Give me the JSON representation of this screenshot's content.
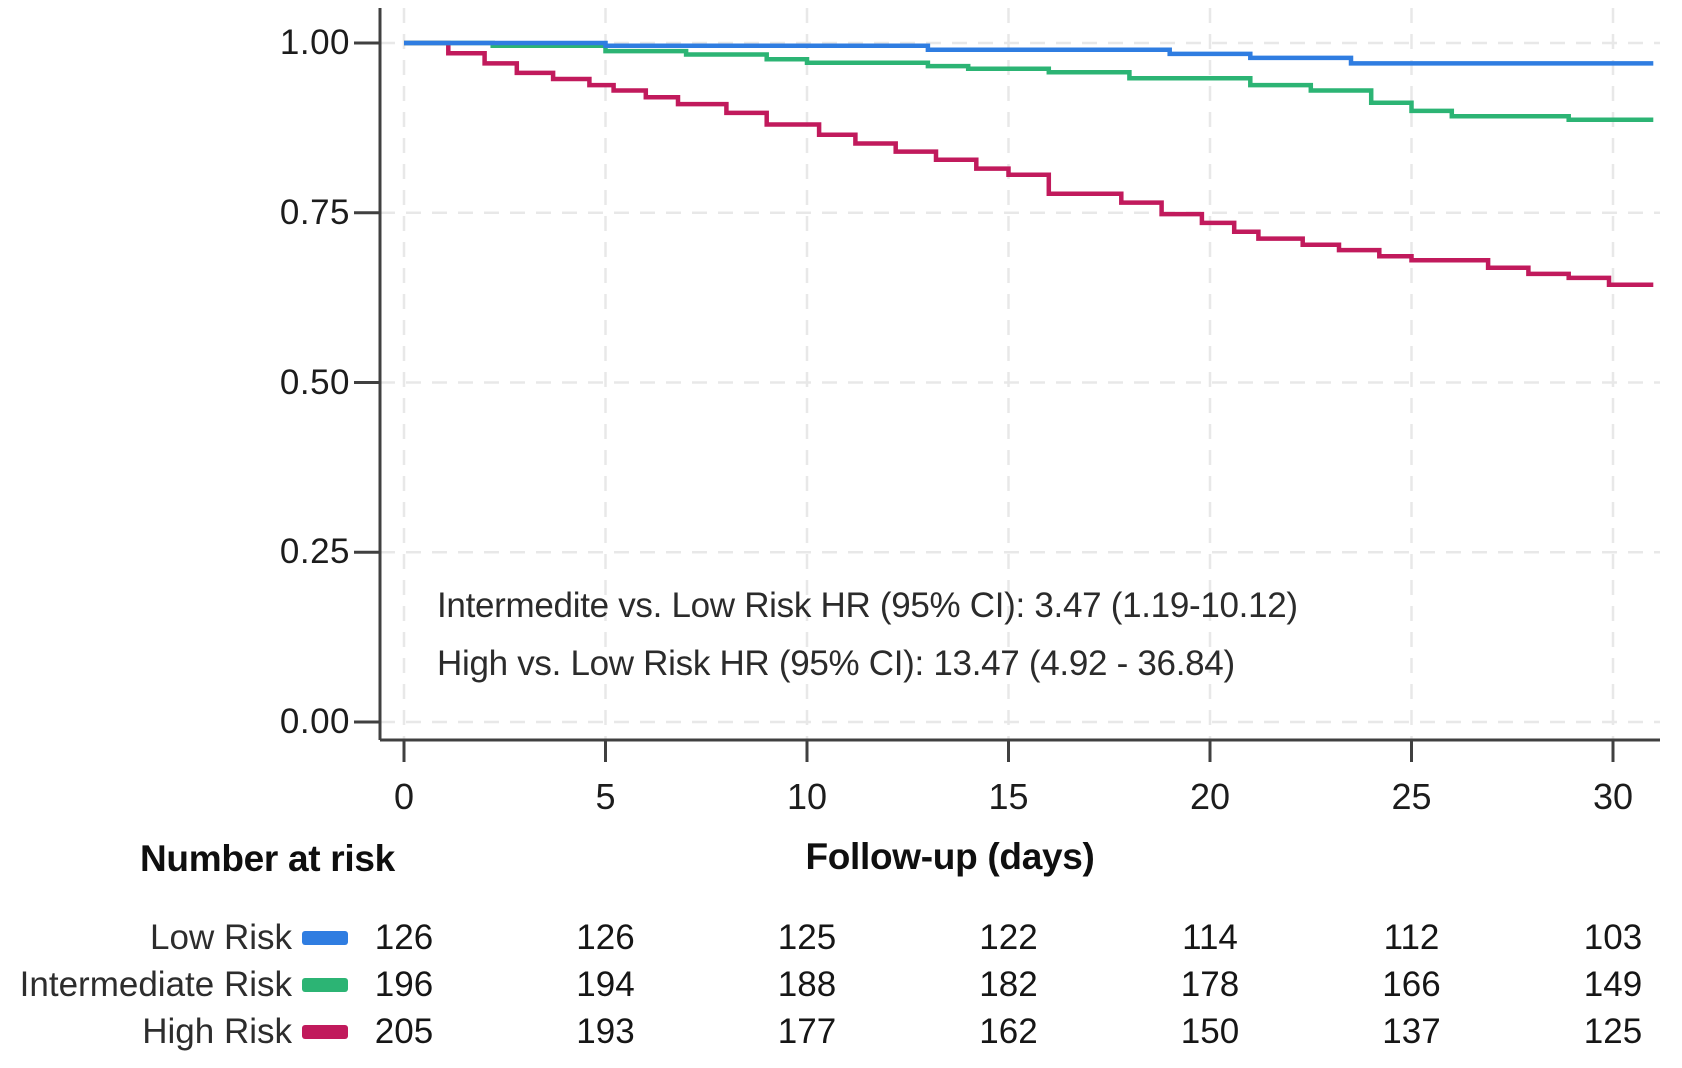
{
  "colors": {
    "low_risk": "#2f7de1",
    "intermediate_risk": "#2cb474",
    "high_risk": "#c11a5c",
    "grid": "#e8e8e8",
    "axis": "#404040",
    "tick_text": "#1c1c1c",
    "annotation_text": "#2b2b2b"
  },
  "chart_data": {
    "type": "line",
    "subtype": "kaplan-meier-step-survival",
    "title": "",
    "xlabel": "Follow-up (days)",
    "ylabel": "",
    "xlim": [
      0,
      31
    ],
    "ylim": [
      0.0,
      1.0
    ],
    "x_ticks": [
      0,
      5,
      10,
      15,
      20,
      25,
      30
    ],
    "x_tick_labels": [
      "0",
      "5",
      "10",
      "15",
      "20",
      "25",
      "30"
    ],
    "y_ticks": [
      1.0,
      0.75,
      0.5,
      0.25,
      0.0
    ],
    "y_tick_labels": [
      "1.00",
      "0.75",
      "0.50",
      "0.25",
      "0.00"
    ],
    "grid": true,
    "legend_position": "risk-table-left",
    "annotations": [
      "Intermedite vs. Low Risk HR (95% CI): 3.47 (1.19-10.12)",
      "High vs. Low Risk HR (95% CI): 13.47 (4.92 - 36.84)"
    ],
    "series": [
      {
        "name": "High Risk",
        "color": "#c11a5c",
        "steps": [
          [
            0,
            1.0
          ],
          [
            1.1,
            0.985
          ],
          [
            2.0,
            0.97
          ],
          [
            2.8,
            0.956
          ],
          [
            3.7,
            0.947
          ],
          [
            4.6,
            0.938
          ],
          [
            5.2,
            0.93
          ],
          [
            6.0,
            0.92
          ],
          [
            6.8,
            0.91
          ],
          [
            8.0,
            0.897
          ],
          [
            9.0,
            0.88
          ],
          [
            10.3,
            0.865
          ],
          [
            11.2,
            0.852
          ],
          [
            12.2,
            0.84
          ],
          [
            13.2,
            0.828
          ],
          [
            14.2,
            0.815
          ],
          [
            15.0,
            0.806
          ],
          [
            16.0,
            0.778
          ],
          [
            17.8,
            0.765
          ],
          [
            18.8,
            0.748
          ],
          [
            19.8,
            0.735
          ],
          [
            20.6,
            0.722
          ],
          [
            21.2,
            0.712
          ],
          [
            22.3,
            0.703
          ],
          [
            23.2,
            0.695
          ],
          [
            24.2,
            0.686
          ],
          [
            25.0,
            0.68
          ],
          [
            26.9,
            0.669
          ],
          [
            27.9,
            0.66
          ],
          [
            28.9,
            0.654
          ],
          [
            29.9,
            0.644
          ]
        ]
      },
      {
        "name": "Intermediate Risk",
        "color": "#2cb474",
        "steps": [
          [
            0,
            1.0
          ],
          [
            2.2,
            0.996
          ],
          [
            5.0,
            0.988
          ],
          [
            7.0,
            0.983
          ],
          [
            9.0,
            0.976
          ],
          [
            10.0,
            0.971
          ],
          [
            13.0,
            0.966
          ],
          [
            14.0,
            0.962
          ],
          [
            16.0,
            0.957
          ],
          [
            18.0,
            0.948
          ],
          [
            21.0,
            0.938
          ],
          [
            22.5,
            0.93
          ],
          [
            24.0,
            0.912
          ],
          [
            25.0,
            0.9
          ],
          [
            26.0,
            0.892
          ],
          [
            28.9,
            0.887
          ]
        ]
      },
      {
        "name": "Low Risk",
        "color": "#2f7de1",
        "steps": [
          [
            0,
            1.0
          ],
          [
            5.0,
            0.996
          ],
          [
            13.0,
            0.99
          ],
          [
            19.0,
            0.984
          ],
          [
            21.0,
            0.978
          ],
          [
            23.5,
            0.97
          ]
        ]
      }
    ]
  },
  "risk_table": {
    "heading": "Number at risk",
    "timepoints": [
      0,
      5,
      10,
      15,
      20,
      25,
      30
    ],
    "rows": [
      {
        "label": "Low Risk",
        "color": "#2f7de1",
        "counts": [
          "126",
          "126",
          "125",
          "122",
          "114",
          "112",
          "103"
        ]
      },
      {
        "label": "Intermediate Risk",
        "color": "#2cb474",
        "counts": [
          "196",
          "194",
          "188",
          "182",
          "178",
          "166",
          "149"
        ]
      },
      {
        "label": "High Risk",
        "color": "#c11a5c",
        "counts": [
          "205",
          "193",
          "177",
          "162",
          "150",
          "137",
          "125"
        ]
      }
    ]
  }
}
